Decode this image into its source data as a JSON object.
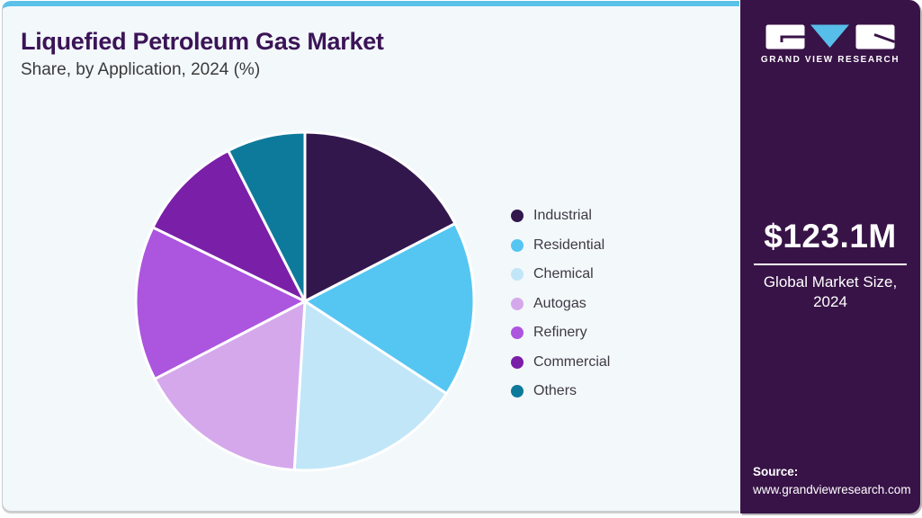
{
  "header": {
    "title": "Liquefied Petroleum Gas Market",
    "subtitle": "Share, by Application, 2024 (%)"
  },
  "chart_data": {
    "type": "pie",
    "title": "Liquefied Petroleum Gas Market Share, by Application, 2024 (%)",
    "unit": "percent",
    "start_angle_deg": 0,
    "direction": "clockwise",
    "legend_position": "right",
    "series": [
      {
        "label": "Industrial",
        "value": 17.4,
        "color": "#32174D"
      },
      {
        "label": "Residential",
        "value": 16.8,
        "color": "#55C6F2"
      },
      {
        "label": "Chemical",
        "value": 16.8,
        "color": "#C1E6F8"
      },
      {
        "label": "Autogas",
        "value": 16.4,
        "color": "#D5A8EC"
      },
      {
        "label": "Refinery",
        "value": 14.8,
        "color": "#AC55DE"
      },
      {
        "label": "Commercial",
        "value": 10.3,
        "color": "#7A1FA8"
      },
      {
        "label": "Others",
        "value": 7.5,
        "color": "#0D7A9B"
      }
    ]
  },
  "sidebar": {
    "brand": "GRAND VIEW RESEARCH",
    "market_size": {
      "value": "$123.1M",
      "label": "Global Market Size, 2024"
    },
    "source": {
      "label": "Source:",
      "url": "www.grandviewresearch.com"
    }
  },
  "colors": {
    "accent_blue": "#5AC1E9",
    "logo_triangle_blue": "#56BEE8",
    "sidebar_purple": "#381347",
    "title_purple": "#3B1457",
    "card_background": "#F3F8FB",
    "body_text": "#3A3A3A"
  }
}
